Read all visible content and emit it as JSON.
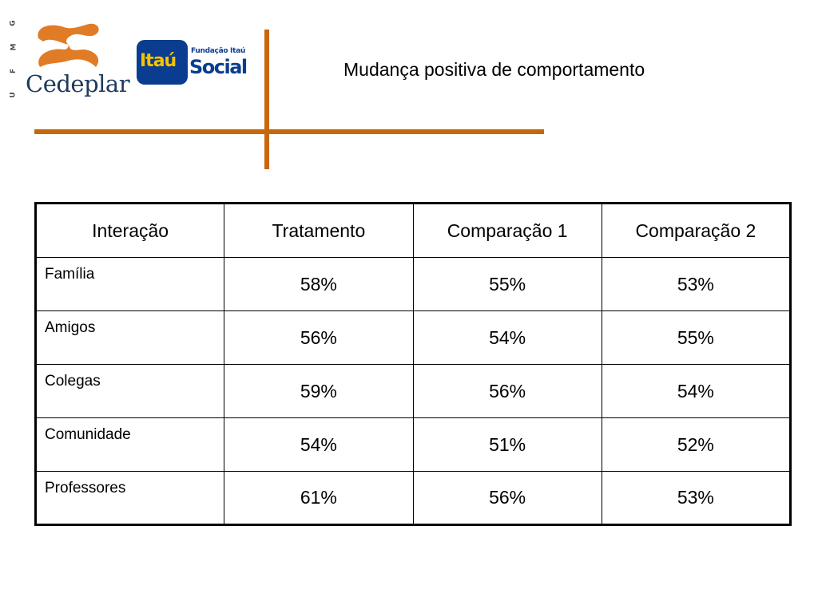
{
  "header": {
    "ufmg_letters": [
      "U",
      "F",
      "M",
      "G"
    ],
    "cedeplar_logo_text": "Cedeplar",
    "itau_logo": {
      "brand": "Itaú",
      "foundation": "Fundação Itaú",
      "program": "Social"
    },
    "title": "Mudança positiva de comportamento"
  },
  "colors": {
    "accent_orange": "#c8660c",
    "itau_blue": "#0a3d8f",
    "itau_yellow": "#f5c400",
    "cedeplar_navy": "#1e3a5c"
  },
  "table": {
    "columns": [
      "Interação",
      "Tratamento",
      "Comparação 1",
      "Comparação 2"
    ],
    "rows": [
      {
        "label": "Família",
        "values": [
          "58%",
          "55%",
          "53%"
        ]
      },
      {
        "label": "Amigos",
        "values": [
          "56%",
          "54%",
          "55%"
        ]
      },
      {
        "label": "Colegas",
        "values": [
          "59%",
          "56%",
          "54%"
        ]
      },
      {
        "label": "Comunidade",
        "values": [
          "54%",
          "51%",
          "52%"
        ]
      },
      {
        "label": "Professores",
        "values": [
          "61%",
          "56%",
          "53%"
        ]
      }
    ]
  }
}
